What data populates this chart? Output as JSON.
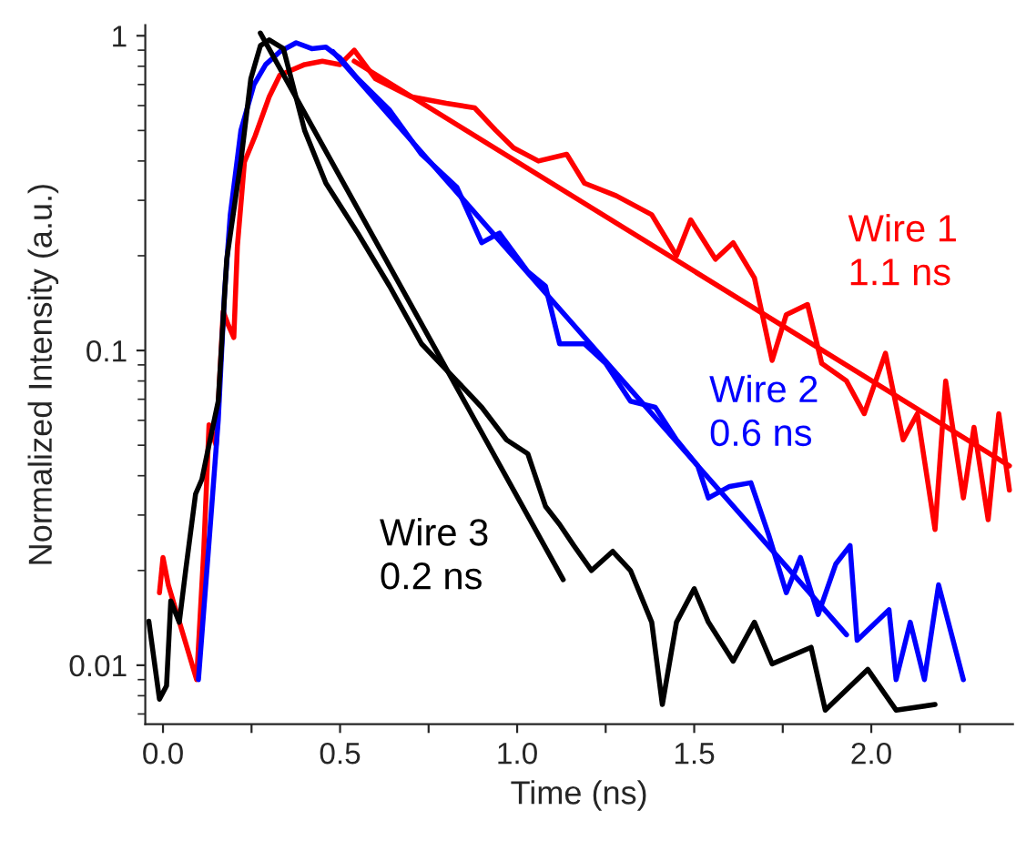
{
  "chart_data": {
    "type": "line",
    "xlabel": "Time (ns)",
    "ylabel": "Normalized Intensity (a.u.)",
    "log": "y",
    "xlim": [
      -0.05,
      2.4
    ],
    "ylim": [
      0.0065,
      1.08
    ],
    "xticks": [
      {
        "value": 0,
        "label": "0.0"
      },
      {
        "value": 0.25,
        "label": null
      },
      {
        "value": 0.5,
        "label": "0.5"
      },
      {
        "value": 0.75,
        "label": null
      },
      {
        "value": 1,
        "label": "1.0"
      },
      {
        "value": 1.25,
        "label": null
      },
      {
        "value": 1.5,
        "label": "1.5"
      },
      {
        "value": 1.75,
        "label": null
      },
      {
        "value": 2,
        "label": "2.0"
      },
      {
        "value": 2.25,
        "label": null
      }
    ],
    "yticks": [
      0.01,
      0.1,
      1
    ],
    "grid": false,
    "legend": false,
    "marker": "none",
    "line_style": "solid",
    "series": [
      {
        "name": "Wire 1\n1.1 ns",
        "color": "#ff0000",
        "x": [
          -0.01,
          0.0,
          0.015,
          0.022,
          0.09,
          0.095,
          0.115,
          0.13,
          0.15,
          0.17,
          0.185,
          0.2,
          0.21,
          0.23,
          0.26,
          0.3,
          0.33,
          0.4,
          0.45,
          0.5,
          0.54,
          0.6,
          0.7,
          0.8,
          0.88,
          0.94,
          0.99,
          1.06,
          1.14,
          1.19,
          1.28,
          1.38,
          1.45,
          1.49,
          1.56,
          1.61,
          1.67,
          1.72,
          1.76,
          1.82,
          1.86,
          1.93,
          1.98,
          2.04,
          2.09,
          2.13,
          2.18,
          2.21,
          2.26,
          2.29,
          2.33,
          2.36,
          2.39
        ],
        "values": [
          0.017,
          0.022,
          0.018,
          null,
          null,
          0.009,
          0.023,
          0.058,
          0.05,
          0.133,
          0.12,
          0.11,
          0.214,
          0.397,
          0.48,
          0.64,
          0.75,
          0.81,
          0.83,
          0.81,
          0.9,
          0.73,
          0.64,
          0.61,
          0.59,
          0.5,
          0.44,
          0.4,
          0.42,
          0.34,
          0.31,
          0.27,
          0.2,
          0.26,
          0.195,
          0.22,
          0.17,
          0.093,
          0.13,
          0.14,
          0.091,
          0.08,
          0.063,
          0.098,
          0.052,
          0.063,
          0.027,
          0.08,
          0.034,
          0.057,
          0.029,
          0.063,
          0.036
        ]
      },
      {
        "color": "#ff0000",
        "x": [
          0.54,
          2.39
        ],
        "values": [
          0.83,
          0.043
        ]
      },
      {
        "name": "Wire 2\n0.6 ns",
        "color": "#0000ff",
        "x": [
          0.1,
          0.128,
          0.156,
          0.174,
          0.19,
          0.22,
          0.257,
          0.29,
          0.33,
          0.376,
          0.42,
          0.46,
          0.5,
          0.55,
          0.64,
          0.73,
          0.83,
          0.9,
          0.95,
          1.03,
          1.08,
          1.12,
          1.19,
          1.25,
          1.32,
          1.39,
          1.45,
          1.51,
          1.54,
          1.6,
          1.66,
          1.71,
          1.76,
          1.8,
          1.85,
          1.9,
          1.94,
          1.96,
          2.0,
          2.05,
          2.07,
          2.11,
          2.15,
          2.19,
          2.22,
          2.26
        ],
        "values": [
          0.009,
          0.023,
          0.06,
          0.154,
          0.27,
          0.5,
          0.7,
          0.81,
          0.89,
          0.95,
          0.91,
          0.92,
          0.85,
          0.73,
          0.58,
          0.42,
          0.33,
          0.22,
          0.236,
          0.178,
          0.16,
          0.105,
          0.105,
          0.091,
          0.069,
          0.066,
          0.052,
          0.043,
          0.034,
          0.037,
          0.038,
          0.026,
          0.017,
          0.022,
          0.0145,
          0.021,
          0.024,
          0.012,
          null,
          0.015,
          0.009,
          0.0137,
          0.009,
          0.018,
          null,
          0.009
        ]
      },
      {
        "color": "#0000ff",
        "x": [
          0.48,
          1.93
        ],
        "values": [
          0.89,
          0.0125
        ]
      },
      {
        "name": "Wire 3\n0.2 ns",
        "color": "#000000",
        "x": [
          -0.04,
          -0.02,
          -0.01,
          0.01,
          0.022,
          0.046,
          0.064,
          0.092,
          0.11,
          0.128,
          0.156,
          0.18,
          0.22,
          0.248,
          0.275,
          0.3,
          0.34,
          0.4,
          0.46,
          0.55,
          0.64,
          0.73,
          0.83,
          0.9,
          0.97,
          1.03,
          1.08,
          1.12,
          1.16,
          1.21,
          1.27,
          1.32,
          1.38,
          1.41,
          1.45,
          1.5,
          1.54,
          1.58,
          1.61,
          1.65,
          1.67,
          1.72,
          1.76,
          1.83,
          1.87,
          1.93,
          1.99,
          2.01,
          2.07,
          2.09,
          2.18
        ],
        "values": [
          0.0138,
          null,
          0.0078,
          0.0086,
          0.016,
          0.0137,
          0.02,
          0.035,
          0.039,
          0.049,
          0.069,
          0.195,
          0.4,
          0.73,
          0.93,
          0.97,
          0.91,
          0.5,
          0.34,
          0.236,
          0.16,
          0.105,
          0.08,
          0.066,
          0.052,
          0.047,
          0.032,
          0.028,
          0.024,
          0.02,
          0.023,
          0.02,
          0.0137,
          0.0075,
          0.0137,
          0.0175,
          0.0137,
          null,
          0.0103,
          null,
          0.0137,
          0.0101,
          null,
          0.0114,
          0.0072,
          null,
          0.0097,
          null,
          0.0072,
          null,
          0.0075
        ]
      },
      {
        "color": "#000000",
        "x": [
          0.275,
          1.13
        ],
        "values": [
          1.02,
          0.0187
        ]
      }
    ]
  }
}
